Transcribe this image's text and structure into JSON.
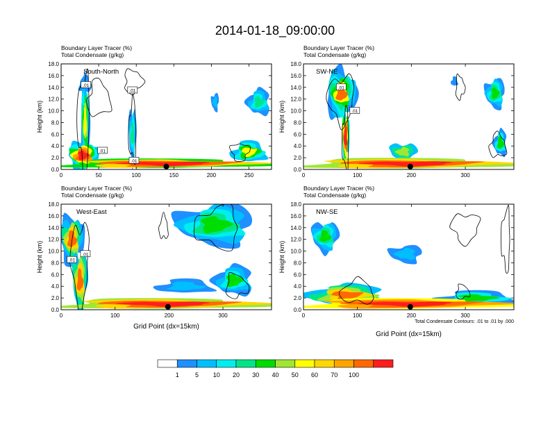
{
  "page": {
    "title": "2014-01-18_09:00:00"
  },
  "colors": {
    "scale": [
      "#ffffff",
      "#1e90ff",
      "#00bfff",
      "#00eeee",
      "#00e58a",
      "#00dd00",
      "#a0e632",
      "#ffff00",
      "#ffd700",
      "#ffa500",
      "#ff6a00",
      "#ff1e1e"
    ],
    "contour": "#000000",
    "marker": "#000000"
  },
  "chart_data": [
    {
      "type": "heatmap",
      "panel_label": "South-North",
      "labels_top": [
        "Boundary Layer Tracer   (%)",
        "Total Condensate   (g/kg)"
      ],
      "ylabel": "Height (km)",
      "xlabel": "",
      "ylim": [
        0,
        18
      ],
      "xlim": [
        0,
        280
      ],
      "xticks": [
        0,
        50,
        100,
        150,
        200,
        250
      ],
      "yticks": [
        "0.0",
        "2.0",
        "4.0",
        "6.0",
        "8.0",
        "10.0",
        "12.0",
        "14.0",
        "16.0",
        "18.0"
      ],
      "marker_x": 140,
      "contour_labels": [
        ".01",
        ".01",
        ".01",
        ".01"
      ],
      "grid": false
    },
    {
      "type": "heatmap",
      "panel_label": "SW-NE",
      "labels_top": [
        "Boundary Layer Tracer   (%)",
        "Total Condensate   (g/kg)"
      ],
      "ylabel": "Height (km)",
      "xlabel": "",
      "ylim": [
        0,
        18
      ],
      "xlim": [
        0,
        390
      ],
      "xticks": [
        0,
        100,
        200,
        300
      ],
      "yticks": [
        "0.0",
        "2.0",
        "4.0",
        "6.0",
        "8.0",
        "10.0",
        "12.0",
        "14.0",
        "16.0",
        "18.0"
      ],
      "marker_x": 198,
      "contour_labels": [
        ".01",
        ".01"
      ],
      "grid": false
    },
    {
      "type": "heatmap",
      "panel_label": "West-East",
      "labels_top": [
        "Boundary Layer Tracer   (%)",
        "Total Condensate   (g/kg)"
      ],
      "ylabel": "Height (km)",
      "xlabel": "Grid Point (dx=15km)",
      "ylim": [
        0,
        18
      ],
      "xlim": [
        0,
        390
      ],
      "xticks": [
        0,
        100,
        200,
        300
      ],
      "yticks": [
        "0.0",
        "2.0",
        "4.0",
        "6.0",
        "8.0",
        "10.0",
        "12.0",
        "14.0",
        "16.0",
        "18.0"
      ],
      "marker_x": 198,
      "contour_labels": [
        ".01",
        ".01"
      ],
      "grid": false
    },
    {
      "type": "heatmap",
      "panel_label": "NW-SE",
      "labels_top": [
        "Boundary Layer Tracer   (%)",
        "Total Condensate   (g/kg)"
      ],
      "ylabel": "Height (km)",
      "xlabel": "Grid Point (dx=15km)",
      "ylim": [
        0,
        18
      ],
      "xlim": [
        0,
        390
      ],
      "xticks": [
        0,
        100,
        200,
        300
      ],
      "yticks": [
        "0.0",
        "2.0",
        "4.0",
        "6.0",
        "8.0",
        "10.0",
        "12.0",
        "14.0",
        "16.0",
        "18.0"
      ],
      "marker_x": 198,
      "contour_labels": [],
      "footnote": "Total Condensate Contours: .01 to .01 by .000",
      "grid": false
    }
  ],
  "colorbar": {
    "labels": [
      "1",
      "5",
      "10",
      "20",
      "30",
      "40",
      "50",
      "60",
      "70",
      "100"
    ]
  }
}
